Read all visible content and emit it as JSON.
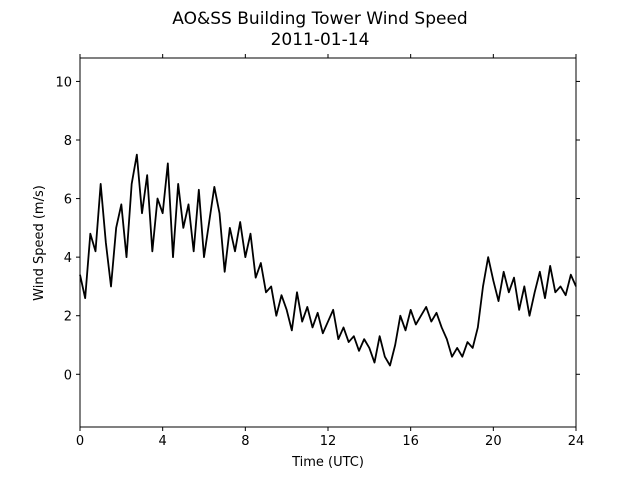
{
  "chart_data": {
    "type": "line",
    "title": "AO&SS Building Tower Wind Speed",
    "subtitle": "2011-01-14",
    "xlabel": "Time (UTC)",
    "ylabel": "Wind Speed (m/s)",
    "x": [
      0,
      0.25,
      0.5,
      0.75,
      1,
      1.25,
      1.5,
      1.75,
      2,
      2.25,
      2.5,
      2.75,
      3,
      3.25,
      3.5,
      3.75,
      4,
      4.25,
      4.5,
      4.75,
      5,
      5.25,
      5.5,
      5.75,
      6,
      6.25,
      6.5,
      6.75,
      7,
      7.25,
      7.5,
      7.75,
      8,
      8.25,
      8.5,
      8.75,
      9,
      9.25,
      9.5,
      9.75,
      10,
      10.25,
      10.5,
      10.75,
      11,
      11.25,
      11.5,
      11.75,
      12,
      12.25,
      12.5,
      12.75,
      13,
      13.25,
      13.5,
      13.75,
      14,
      14.25,
      14.5,
      14.75,
      15,
      15.25,
      15.5,
      15.75,
      16,
      16.25,
      16.5,
      16.75,
      17,
      17.25,
      17.5,
      17.75,
      18,
      18.25,
      18.5,
      18.75,
      19,
      19.25,
      19.5,
      19.75,
      20,
      20.25,
      20.5,
      20.75,
      21,
      21.25,
      21.5,
      21.75,
      22,
      22.25,
      22.5,
      22.75,
      23,
      23.25,
      23.5,
      23.75,
      24
    ],
    "series": [
      {
        "name": "Wind Speed",
        "color": "#000000",
        "values": [
          3.4,
          2.6,
          4.8,
          4.2,
          6.5,
          4.5,
          3.0,
          5.0,
          5.8,
          4.0,
          6.5,
          7.5,
          5.5,
          6.8,
          4.2,
          6.0,
          5.5,
          7.2,
          4.0,
          6.5,
          5.0,
          5.8,
          4.2,
          6.3,
          4.0,
          5.2,
          6.4,
          5.5,
          3.5,
          5.0,
          4.2,
          5.2,
          4.0,
          4.8,
          3.3,
          3.8,
          2.8,
          3.0,
          2.0,
          2.7,
          2.2,
          1.5,
          2.8,
          1.8,
          2.3,
          1.6,
          2.1,
          1.4,
          1.8,
          2.2,
          1.2,
          1.6,
          1.1,
          1.3,
          0.8,
          1.2,
          0.9,
          0.4,
          1.3,
          0.6,
          0.3,
          1.0,
          2.0,
          1.5,
          2.2,
          1.7,
          2.0,
          2.3,
          1.8,
          2.1,
          1.6,
          1.2,
          0.6,
          0.9,
          0.6,
          1.1,
          0.9,
          1.6,
          3.0,
          4.0,
          3.2,
          2.5,
          3.5,
          2.8,
          3.3,
          2.2,
          3.0,
          2.0,
          2.8,
          3.5,
          2.6,
          3.7,
          2.8,
          3.0,
          2.7,
          3.4,
          3.0
        ]
      }
    ],
    "xlim": [
      0,
      24
    ],
    "xticks": [
      0,
      4,
      8,
      12,
      16,
      20,
      24
    ],
    "ylim": [
      -1.8,
      10.8
    ],
    "yticks": [
      0,
      2,
      4,
      6,
      8,
      10
    ]
  }
}
